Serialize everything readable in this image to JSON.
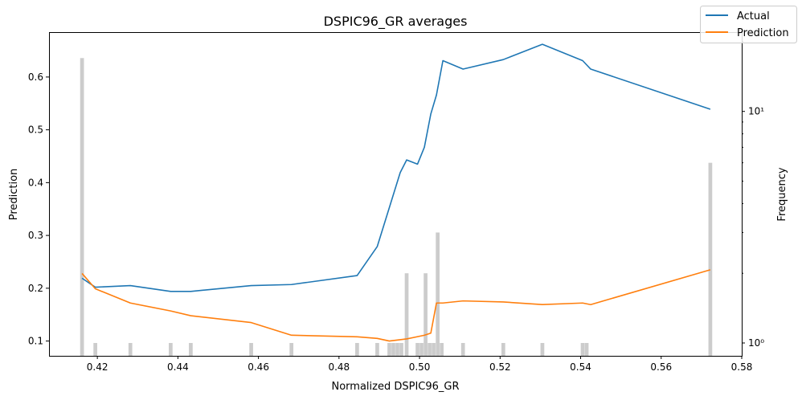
{
  "chart_data": {
    "type": "line",
    "title": "DSPIC96_GR averages",
    "xlabel": "Normalized DSPIC96_GR",
    "ylabel": "Prediction",
    "y2label": "Frequency",
    "xlim": [
      0.408,
      0.58
    ],
    "ylim": [
      0.072,
      0.685
    ],
    "y2lim": [
      0.88,
      22
    ],
    "y2scale": "log",
    "grid": false,
    "legend_position": "top-right",
    "xticks": [
      0.42,
      0.44,
      0.46,
      0.48,
      0.5,
      0.52,
      0.54,
      0.56,
      0.58
    ],
    "xtick_labels": [
      "0.42",
      "0.44",
      "0.46",
      "0.48",
      "0.50",
      "0.52",
      "0.54",
      "0.56",
      "0.58"
    ],
    "yticks": [
      0.1,
      0.2,
      0.3,
      0.4,
      0.5,
      0.6
    ],
    "ytick_labels": [
      "0.1",
      "0.2",
      "0.3",
      "0.4",
      "0.5",
      "0.6"
    ],
    "y2ticks": [
      1,
      10
    ],
    "y2tick_labels": [
      "10⁰",
      "10¹"
    ],
    "series": [
      {
        "name": "Actual",
        "color": "#1f77b4",
        "x": [
          0.4162,
          0.4195,
          0.4282,
          0.4382,
          0.4432,
          0.4582,
          0.4682,
          0.4845,
          0.4895,
          0.4952,
          0.4968,
          0.4995,
          0.5012,
          0.5028,
          0.5042,
          0.5058,
          0.5108,
          0.5208,
          0.5305,
          0.5405,
          0.5425,
          0.5722
        ],
        "y": [
          0.219,
          0.202,
          0.205,
          0.194,
          0.194,
          0.205,
          0.207,
          0.224,
          0.279,
          0.419,
          0.443,
          0.435,
          0.467,
          0.53,
          0.566,
          0.631,
          0.615,
          0.633,
          0.662,
          0.631,
          0.615,
          0.539
        ]
      },
      {
        "name": "Prediction",
        "color": "#ff7f0e",
        "x": [
          0.4162,
          0.4195,
          0.4282,
          0.4382,
          0.4432,
          0.4582,
          0.4682,
          0.4845,
          0.4895,
          0.4925,
          0.4968,
          0.5012,
          0.5028,
          0.5042,
          0.5058,
          0.5108,
          0.5208,
          0.5305,
          0.5405,
          0.5425,
          0.5722
        ],
        "y": [
          0.228,
          0.199,
          0.172,
          0.157,
          0.148,
          0.135,
          0.111,
          0.108,
          0.105,
          0.1,
          0.104,
          0.111,
          0.115,
          0.172,
          0.172,
          0.176,
          0.174,
          0.169,
          0.172,
          0.169,
          0.235
        ]
      }
    ],
    "histogram": {
      "color": "#cccccc",
      "bin_width": 0.00094,
      "x": [
        0.4162,
        0.4195,
        0.4282,
        0.4382,
        0.4432,
        0.4582,
        0.4682,
        0.4845,
        0.4895,
        0.4925,
        0.4935,
        0.4945,
        0.4955,
        0.4968,
        0.4995,
        0.5005,
        0.5015,
        0.5025,
        0.5035,
        0.5045,
        0.5055,
        0.5108,
        0.5208,
        0.5305,
        0.5405,
        0.5415,
        0.5722
      ],
      "counts": [
        17,
        1,
        1,
        1,
        1,
        1,
        1,
        1,
        1,
        1,
        1,
        1,
        1,
        2,
        1,
        1,
        2,
        1,
        1,
        3,
        1,
        1,
        1,
        1,
        1,
        1,
        6
      ]
    }
  }
}
